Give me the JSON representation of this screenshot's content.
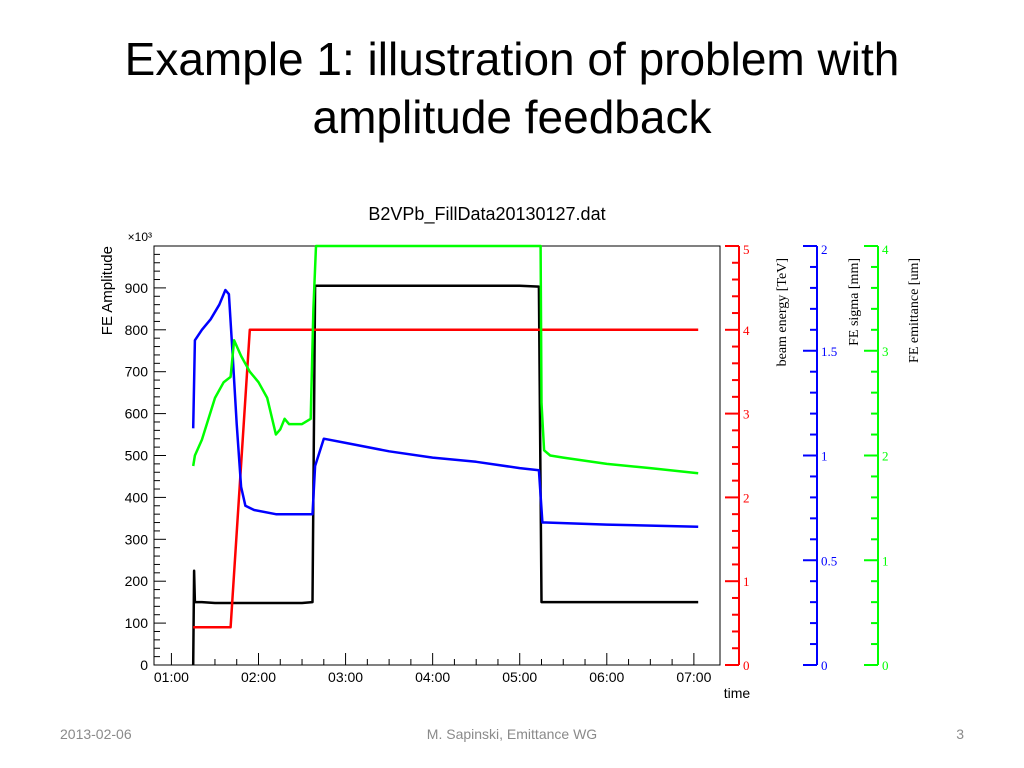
{
  "slide": {
    "title_line1": "Example 1: illustration of problem with",
    "title_line2": "amplitude feedback"
  },
  "footer": {
    "date": "2013-02-06",
    "author": "M. Sapinski, Emittance WG",
    "page": "3"
  },
  "colors": {
    "amplitude": "#000000",
    "energy": "#ff0000",
    "sigma": "#0000ff",
    "emittance": "#00ff00"
  },
  "chart_data": {
    "type": "line",
    "title": "B2VPb_FillData20130127.dat",
    "xlabel": "time",
    "x_ticks": [
      "01:00",
      "02:00",
      "03:00",
      "04:00",
      "05:00",
      "06:00",
      "07:00"
    ],
    "xlim_hours": [
      0.8,
      7.3
    ],
    "axes": {
      "amplitude": {
        "label": "FE Amplitude",
        "multiplier": "×10³",
        "ylim": [
          0,
          1000
        ],
        "ticks": [
          0,
          100,
          200,
          300,
          400,
          500,
          600,
          700,
          800,
          900
        ]
      },
      "energy": {
        "label": "beam energy [TeV]",
        "ylim": [
          0,
          5
        ],
        "ticks": [
          0,
          1,
          2,
          3,
          4,
          5
        ]
      },
      "sigma": {
        "label": "FE sigma [mm]",
        "ylim": [
          0,
          2
        ],
        "ticks": [
          0,
          0.5,
          1,
          1.5,
          2
        ]
      },
      "emittance": {
        "label": "FE emittance [um]",
        "ylim": [
          0,
          4
        ],
        "ticks": [
          0,
          1,
          2,
          3,
          4
        ]
      }
    },
    "series": [
      {
        "key": "amplitude",
        "axis": "amplitude",
        "x": [
          1.25,
          1.26,
          1.27,
          1.35,
          1.5,
          2.0,
          2.5,
          2.62,
          2.65,
          2.7,
          3.0,
          4.0,
          5.0,
          5.22,
          5.25,
          5.3,
          6.0,
          7.05
        ],
        "y": [
          0,
          225,
          150,
          150,
          148,
          148,
          148,
          150,
          905,
          905,
          905,
          905,
          905,
          903,
          150,
          150,
          150,
          150
        ]
      },
      {
        "key": "energy",
        "axis": "energy",
        "x": [
          1.25,
          1.68,
          1.9,
          2.0,
          3.0,
          4.0,
          5.0,
          6.0,
          7.05
        ],
        "y": [
          0.45,
          0.45,
          4.0,
          4.0,
          4.0,
          4.0,
          4.0,
          4.0,
          4.0
        ]
      },
      {
        "key": "sigma",
        "axis": "sigma",
        "x": [
          1.25,
          1.27,
          1.35,
          1.45,
          1.55,
          1.62,
          1.66,
          1.7,
          1.75,
          1.8,
          1.85,
          1.95,
          2.2,
          2.62,
          2.65,
          2.75,
          3.0,
          3.5,
          4.0,
          4.5,
          5.0,
          5.22,
          5.26,
          5.3,
          6.0,
          7.05
        ],
        "y": [
          1.13,
          1.55,
          1.6,
          1.65,
          1.72,
          1.79,
          1.77,
          1.5,
          1.15,
          0.85,
          0.76,
          0.74,
          0.72,
          0.72,
          0.95,
          1.08,
          1.06,
          1.02,
          0.99,
          0.97,
          0.94,
          0.93,
          0.68,
          0.68,
          0.67,
          0.66
        ]
      },
      {
        "key": "emittance",
        "axis": "emittance",
        "x": [
          1.25,
          1.27,
          1.35,
          1.5,
          1.6,
          1.68,
          1.72,
          1.8,
          1.9,
          2.0,
          2.1,
          2.2,
          2.25,
          2.3,
          2.35,
          2.4,
          2.5,
          2.6,
          2.63,
          2.66,
          5.24,
          5.25,
          5.28,
          5.35,
          5.5,
          6.0,
          6.5,
          7.05
        ],
        "y": [
          1.9,
          2.0,
          2.15,
          2.55,
          2.7,
          2.75,
          3.1,
          2.95,
          2.8,
          2.7,
          2.55,
          2.2,
          2.25,
          2.35,
          2.3,
          2.3,
          2.3,
          2.35,
          3.4,
          4.0,
          4.0,
          2.5,
          2.05,
          2.0,
          1.98,
          1.92,
          1.88,
          1.83
        ]
      }
    ]
  }
}
